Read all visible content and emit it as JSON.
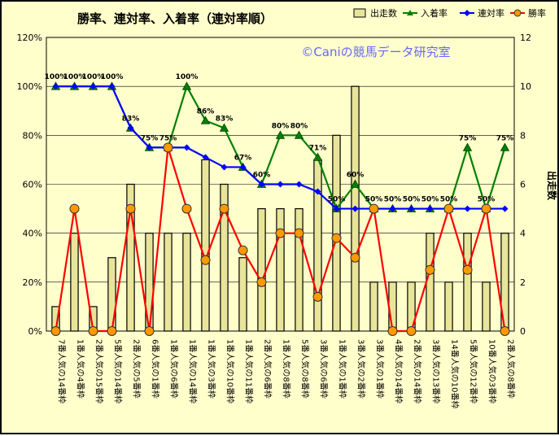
{
  "chart_data": {
    "type": "bar+line",
    "title": "勝率、連対率、入着率（連対率順）",
    "watermark": "©Caniの競馬データ研究室",
    "categories": [
      "7番人気の14番枠",
      "1番人気の4番枠",
      "2番人気の15番枠",
      "5番人気の14番枠",
      "2番人気の5番枠",
      "6番人気の1番枠",
      "1番人気の6番枠",
      "1番人気の14番枠",
      "1番人気の3番枠",
      "1番人気の10番枠",
      "1番人気の11番枠",
      "2番人気の6番枠",
      "1番人気の8番枠",
      "5番人気の8番枠",
      "3番人気の6番枠",
      "1番人気の1番枠",
      "3番人気の2番枠",
      "3番人気の1番枠",
      "4番人気の14番枠",
      "2番人気の14番枠",
      "3番人気の13番枠",
      "14番人気の10番枠",
      "5番人気の12番枠",
      "10番人気の3番枠",
      "2番人気の8番枠"
    ],
    "left_axis": {
      "min": 0,
      "max": 120,
      "step": 20,
      "unit": "%"
    },
    "right_axis": {
      "min": 0,
      "max": 12,
      "step": 2,
      "label": "出走数"
    },
    "series": [
      {
        "name": "出走数",
        "type": "bar",
        "axis": "right",
        "color": "#e8e59a",
        "values": [
          1,
          4,
          1,
          3,
          6,
          4,
          4,
          4,
          7,
          6,
          3,
          5,
          5,
          5,
          7,
          8,
          10,
          2,
          2,
          2,
          4,
          2,
          4,
          2,
          4
        ]
      },
      {
        "name": "入着率",
        "type": "line",
        "axis": "left",
        "color": "#008000",
        "values": [
          100,
          100,
          100,
          100,
          83,
          75,
          75,
          100,
          86,
          83,
          67,
          60,
          80,
          80,
          71,
          50,
          60,
          50,
          50,
          50,
          50,
          50,
          75,
          50,
          75
        ]
      },
      {
        "name": "連対率",
        "type": "line",
        "axis": "left",
        "color": "#0000ff",
        "values": [
          100,
          100,
          100,
          100,
          83,
          75,
          75,
          75,
          71,
          67,
          67,
          60,
          60,
          60,
          57,
          50,
          50,
          50,
          50,
          50,
          50,
          50,
          50,
          50,
          50
        ]
      },
      {
        "name": "勝率",
        "type": "line",
        "axis": "left",
        "color": "#ff0000",
        "values": [
          0,
          50,
          0,
          0,
          50,
          0,
          75,
          50,
          29,
          50,
          33,
          20,
          40,
          40,
          14,
          38,
          30,
          50,
          0,
          0,
          25,
          50,
          25,
          50,
          0
        ]
      }
    ],
    "data_labels": [
      "100%",
      "100%",
      "100%",
      "100%",
      "83%",
      "75%",
      "75%",
      "100%",
      "86%",
      "83%",
      "67%",
      "60%",
      "80%",
      "80%",
      "71%",
      "50%",
      "60%",
      "50%",
      "50%",
      "50%",
      "50%",
      "50%",
      "75%",
      "50%",
      "75%"
    ],
    "legend_position": "top-right",
    "grid": true
  }
}
